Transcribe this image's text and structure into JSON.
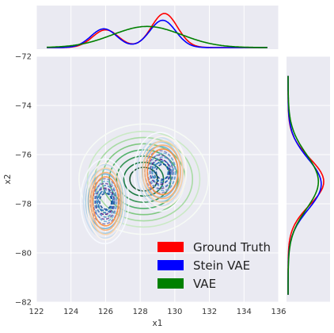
{
  "chart_data": {
    "type": "jointplot-kde",
    "xlabel": "x1",
    "ylabel": "x2",
    "xlim": [
      122,
      136
    ],
    "ylim": [
      -82,
      -72
    ],
    "xticks": [
      122,
      124,
      126,
      128,
      130,
      132,
      134,
      136
    ],
    "yticks": [
      -72,
      -74,
      -76,
      -78,
      -80,
      -82
    ],
    "grid": true,
    "legend_position": "bottom-right",
    "series": [
      {
        "name": "Ground Truth",
        "color": "#ff0000",
        "contour_palette": "oranges-blues",
        "modes": [
          {
            "x": 126.0,
            "y": -77.9,
            "sx": 0.45,
            "sy": 0.65
          },
          {
            "x": 129.3,
            "y": -76.7,
            "sx": 0.55,
            "sy": 0.6
          }
        ],
        "marginal_x": [
          {
            "x": 126.0,
            "peak": 0.52
          },
          {
            "x": 129.4,
            "peak": 1.0
          }
        ],
        "marginal_y": {
          "center": -77.1,
          "peak": 1.0
        }
      },
      {
        "name": "Stein VAE",
        "color": "#0000ff",
        "contour_palette": "blues-purples",
        "modes": [
          {
            "x": 126.0,
            "y": -77.9,
            "sx": 0.55,
            "sy": 0.7
          },
          {
            "x": 129.2,
            "y": -76.7,
            "sx": 0.6,
            "sy": 0.65
          }
        ],
        "marginal_x": [
          {
            "x": 125.9,
            "peak": 0.55
          },
          {
            "x": 129.3,
            "peak": 0.8
          }
        ],
        "marginal_y": {
          "center": -77.2,
          "peak": 0.93
        }
      },
      {
        "name": "VAE",
        "color": "#008000",
        "contour_palette": "greens",
        "modes": [
          {
            "x": 128.2,
            "y": -77.0,
            "sx": 1.5,
            "sy": 0.9
          }
        ],
        "marginal_x": [
          {
            "x": 128.4,
            "peak": 0.62
          }
        ],
        "marginal_y": {
          "center": -77.1,
          "peak": 0.85
        }
      }
    ]
  }
}
